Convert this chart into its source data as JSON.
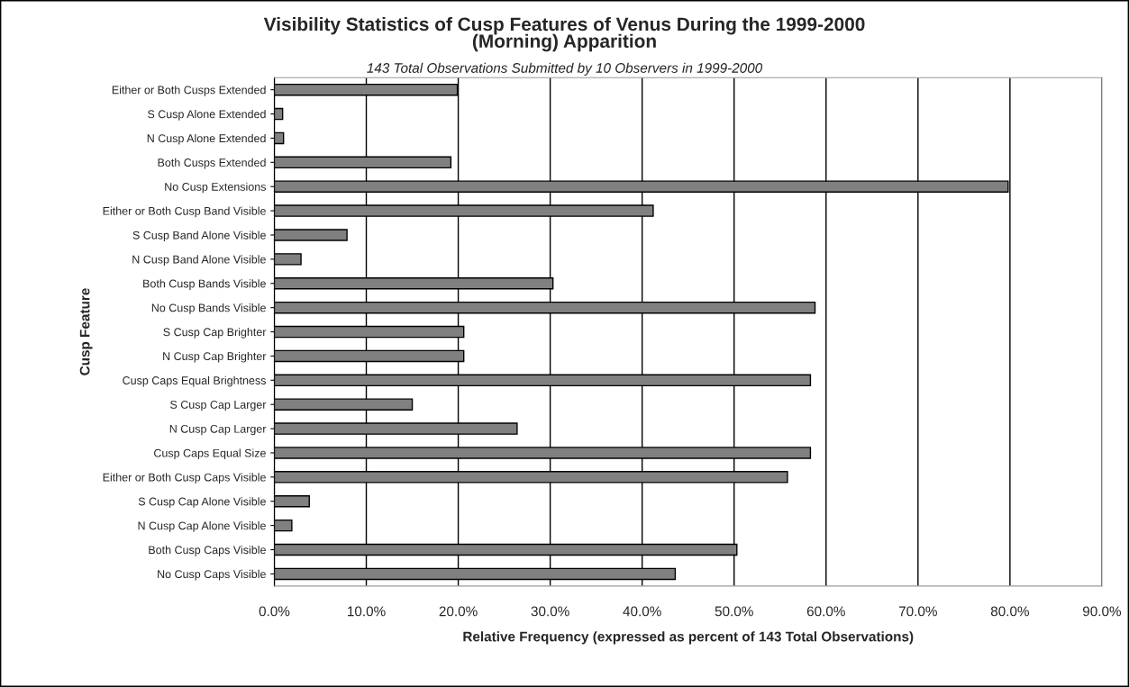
{
  "chart_data": {
    "type": "bar",
    "orientation": "horizontal",
    "title": "Visibility Statistics of Cusp Features of Venus During the 1999-2000\n(Morning) Apparition",
    "subtitle": "143 Total Observations Submitted by 10 Observers in 1999-2000",
    "xlabel": "Relative Frequency (expressed as percent of 143 Total Observations)",
    "ylabel": "Cusp Feature",
    "categories": [
      "Either or Both Cusps Extended",
      "S Cusp Alone Extended",
      "N Cusp Alone Extended",
      "Both Cusps Extended",
      "No Cusp Extensions",
      "Either or Both Cusp Band Visible",
      "S Cusp Band Alone Visible",
      "N Cusp Band Alone Visible",
      "Both Cusp Bands Visible",
      "No Cusp Bands Visible",
      "S Cusp Cap Brighter",
      "N Cusp Cap Brighter",
      "Cusp Caps Equal Brightness",
      "S Cusp Cap Larger",
      "N Cusp Cap Larger",
      "Cusp Caps Equal Size",
      "Either or Both Cusp Caps Visible",
      "S Cusp Cap Alone Visible",
      "N Cusp Cap Alone Visible",
      "Both Cusp Caps Visible",
      "No Cusp Caps Visible"
    ],
    "values": [
      19.9,
      0.9,
      1.0,
      19.2,
      79.8,
      41.2,
      7.9,
      2.9,
      30.3,
      58.8,
      20.6,
      20.6,
      58.3,
      15.0,
      26.4,
      58.3,
      55.8,
      3.8,
      1.9,
      50.3,
      43.6
    ],
    "color": "#808080",
    "xlim": [
      0,
      90
    ],
    "xticks": [
      {
        "value": 0,
        "label": "0.0%"
      },
      {
        "value": 10,
        "label": "10.0%"
      },
      {
        "value": 20,
        "label": "20.0%"
      },
      {
        "value": 30,
        "label": "30.0%"
      },
      {
        "value": 40,
        "label": "40.0%"
      },
      {
        "value": 50,
        "label": "50.0%"
      },
      {
        "value": 60,
        "label": "60.0%"
      },
      {
        "value": 70,
        "label": "70.0%"
      },
      {
        "value": 80,
        "label": "80.0%"
      },
      {
        "value": 90,
        "label": "90.0%"
      }
    ],
    "grid": "x",
    "legend": false
  }
}
